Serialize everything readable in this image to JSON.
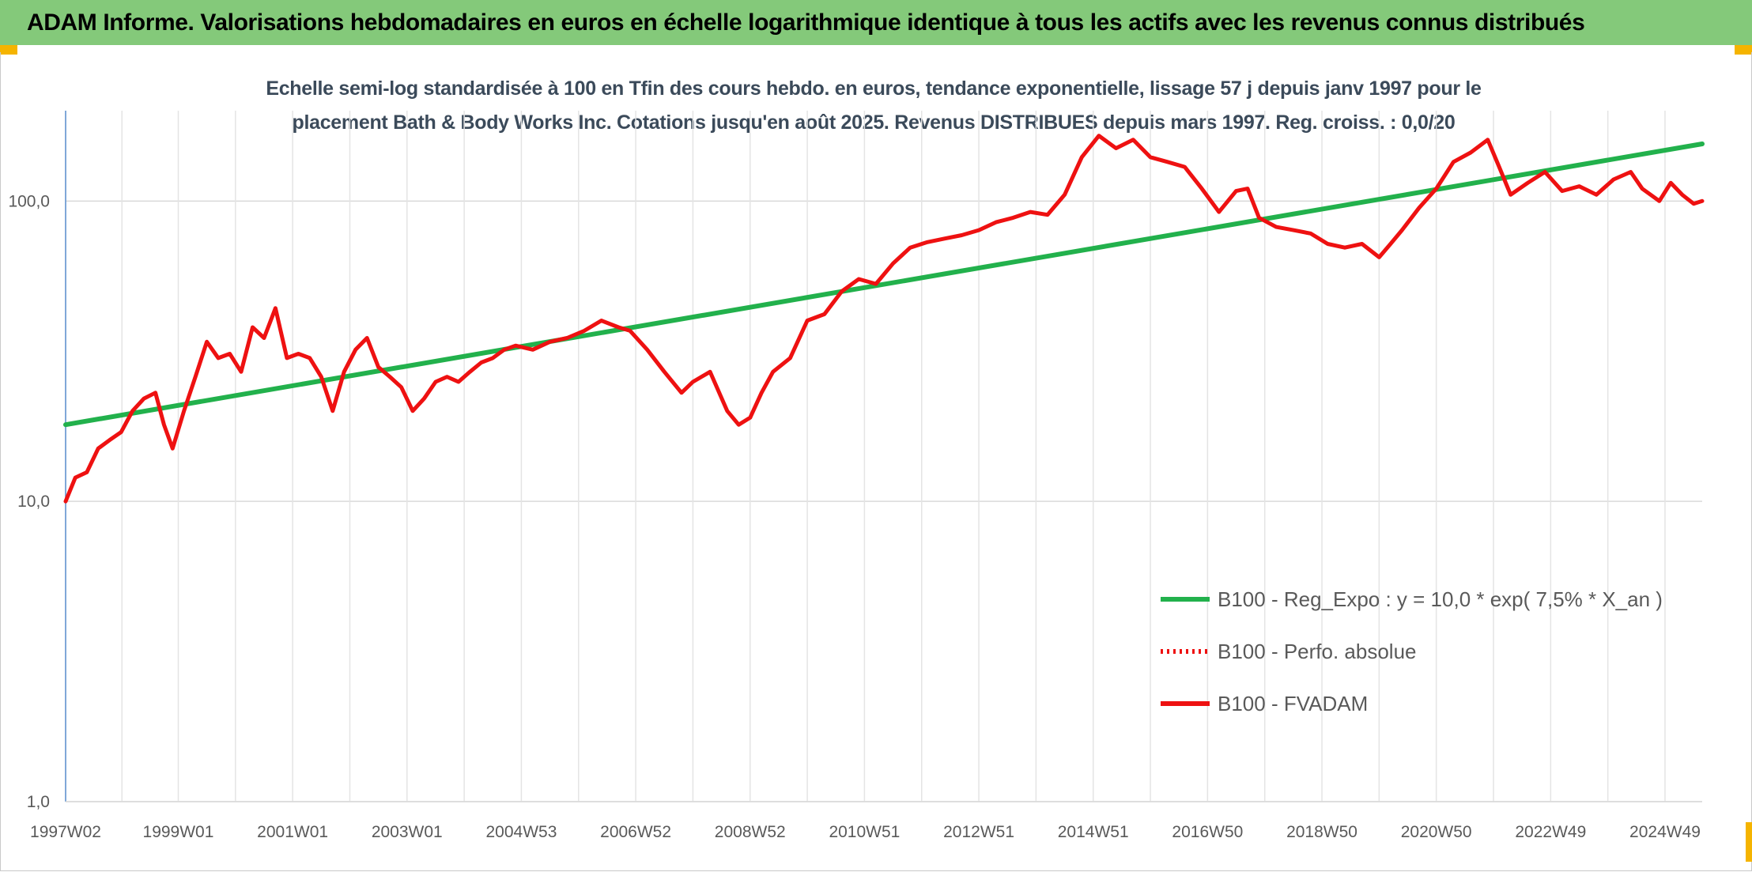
{
  "banner": {
    "title": "ADAM Informe. Valorisations hebdomadaires en euros en échelle logarithmique identique à tous les actifs avec les revenus connus distribués"
  },
  "colors": {
    "banner": "#84c97a",
    "accent_corner": "#f5b400",
    "trend": "#22b14c",
    "fvadam": "#ee1111",
    "perfo": "#ee1111"
  },
  "chart_data": {
    "type": "line",
    "title_line1": "Echelle semi-log standardisée à 100 en Tfin des cours hebdo. en euros, tendance exponentielle, lissage 57 j depuis janv 1997 pour le",
    "title_line2": "placement Bath & Body Works Inc. Cotations jusqu'en août 2025. Revenus DISTRIBUES depuis mars 1997. Reg. croiss. : 0,0/20",
    "y_scale": "log",
    "ylim": [
      1,
      200
    ],
    "y_ticks": [
      {
        "value": 1,
        "label": "1,0"
      },
      {
        "value": 10,
        "label": "10,0"
      },
      {
        "value": 100,
        "label": "100,0"
      }
    ],
    "xlim": [
      1997.03,
      2025.65
    ],
    "x_ticks": [
      {
        "value": 1997.03,
        "label": "1997W02"
      },
      {
        "value": 1999.0,
        "label": "1999W01"
      },
      {
        "value": 2001.0,
        "label": "2001W01"
      },
      {
        "value": 2003.0,
        "label": "2003W01"
      },
      {
        "value": 2005.0,
        "label": "2004W53"
      },
      {
        "value": 2007.0,
        "label": "2006W52"
      },
      {
        "value": 2009.0,
        "label": "2008W52"
      },
      {
        "value": 2011.0,
        "label": "2010W51"
      },
      {
        "value": 2013.0,
        "label": "2012W51"
      },
      {
        "value": 2015.0,
        "label": "2014W51"
      },
      {
        "value": 2017.0,
        "label": "2016W50"
      },
      {
        "value": 2019.0,
        "label": "2018W50"
      },
      {
        "value": 2021.0,
        "label": "2020W50"
      },
      {
        "value": 2023.0,
        "label": "2022W49"
      },
      {
        "value": 2025.0,
        "label": "2024W49"
      }
    ],
    "grid": true,
    "legend_position": "bottom-right",
    "series": [
      {
        "name": "B100 - Reg_Expo : y = 10,0 * exp( 7,5% *  X_an )",
        "style": "solid",
        "color": "#22b14c",
        "x": [
          1997.03,
          2025.65
        ],
        "y": [
          18,
          155
        ]
      },
      {
        "name": "B100 - Perfo. absolue",
        "style": "dotted",
        "color": "#ee1111",
        "x": [],
        "y": []
      },
      {
        "name": "B100 - FVADAM",
        "style": "solid",
        "color": "#ee1111",
        "x": [
          1997.03,
          1997.2,
          1997.4,
          1997.6,
          1997.8,
          1998.0,
          1998.2,
          1998.4,
          1998.6,
          1998.75,
          1998.9,
          1999.1,
          1999.3,
          1999.5,
          1999.7,
          1999.9,
          2000.1,
          2000.3,
          2000.5,
          2000.7,
          2000.9,
          2001.1,
          2001.3,
          2001.5,
          2001.7,
          2001.9,
          2002.1,
          2002.3,
          2002.5,
          2002.7,
          2002.9,
          2003.1,
          2003.3,
          2003.5,
          2003.7,
          2003.9,
          2004.1,
          2004.3,
          2004.5,
          2004.7,
          2004.9,
          2005.2,
          2005.5,
          2005.8,
          2006.1,
          2006.4,
          2006.7,
          2006.9,
          2007.2,
          2007.5,
          2007.8,
          2008.0,
          2008.3,
          2008.6,
          2008.8,
          2009.0,
          2009.2,
          2009.4,
          2009.7,
          2010.0,
          2010.3,
          2010.6,
          2010.9,
          2011.2,
          2011.5,
          2011.8,
          2012.1,
          2012.4,
          2012.7,
          2013.0,
          2013.3,
          2013.6,
          2013.9,
          2014.2,
          2014.5,
          2014.8,
          2015.1,
          2015.4,
          2015.7,
          2016.0,
          2016.3,
          2016.6,
          2016.9,
          2017.2,
          2017.5,
          2017.7,
          2017.9,
          2018.2,
          2018.5,
          2018.8,
          2019.1,
          2019.4,
          2019.7,
          2020.0,
          2020.2,
          2020.4,
          2020.7,
          2021.0,
          2021.3,
          2021.6,
          2021.9,
          2022.1,
          2022.3,
          2022.6,
          2022.9,
          2023.2,
          2023.5,
          2023.8,
          2024.1,
          2024.4,
          2024.6,
          2024.9,
          2025.1,
          2025.3,
          2025.5,
          2025.65
        ],
        "y": [
          10,
          12,
          12.5,
          15,
          16,
          17,
          20,
          22,
          23,
          18,
          15,
          20,
          26,
          34,
          30,
          31,
          27,
          38,
          35,
          44,
          30,
          31,
          30,
          26,
          20,
          27,
          32,
          35,
          28,
          26,
          24,
          20,
          22,
          25,
          26,
          25,
          27,
          29,
          30,
          32,
          33,
          32,
          34,
          35,
          37,
          40,
          38,
          37,
          32,
          27,
          23,
          25,
          27,
          20,
          18,
          19,
          23,
          27,
          30,
          40,
          42,
          50,
          55,
          53,
          62,
          70,
          73,
          75,
          77,
          80,
          85,
          88,
          92,
          90,
          105,
          140,
          165,
          150,
          160,
          140,
          135,
          130,
          110,
          92,
          108,
          110,
          88,
          82,
          80,
          78,
          72,
          70,
          72,
          65,
          72,
          80,
          95,
          110,
          135,
          145,
          160,
          130,
          105,
          115,
          125,
          108,
          112,
          105,
          118,
          125,
          110,
          100,
          115,
          105,
          98,
          100
        ]
      }
    ]
  }
}
